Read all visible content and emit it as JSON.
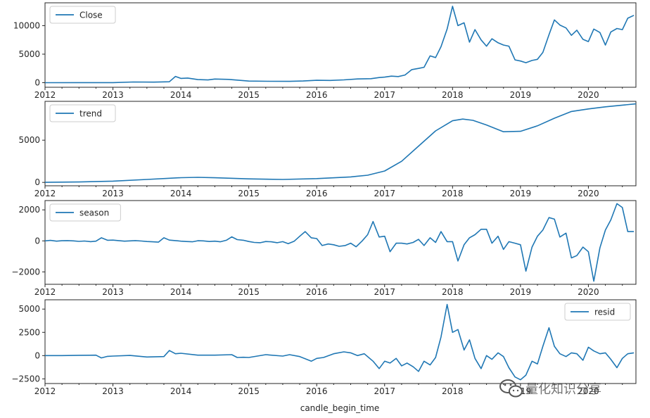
{
  "xlabel": "candle_begin_time",
  "watermark": {
    "text": "量化知识分享",
    "icon": "wechat-icon"
  },
  "line_color": "#1f77b4",
  "x_axis": {
    "range": [
      2012.0,
      2020.7
    ],
    "ticks": [
      2012,
      2013,
      2014,
      2015,
      2016,
      2017,
      2018,
      2019,
      2020
    ]
  },
  "chart_data": [
    {
      "type": "line",
      "legend": "Close",
      "legend_position": "upper left",
      "ylim": [
        -800,
        14000
      ],
      "yticks": [
        0,
        5000,
        10000
      ],
      "x": [
        2012.0,
        2012.5,
        2013.0,
        2013.3,
        2013.6,
        2013.83,
        2013.92,
        2014.0,
        2014.1,
        2014.25,
        2014.4,
        2014.5,
        2014.7,
        2015.0,
        2015.3,
        2015.6,
        2015.8,
        2016.0,
        2016.2,
        2016.4,
        2016.6,
        2016.8,
        2016.92,
        2017.0,
        2017.1,
        2017.2,
        2017.3,
        2017.4,
        2017.5,
        2017.58,
        2017.67,
        2017.75,
        2017.83,
        2017.92,
        2018.0,
        2018.08,
        2018.17,
        2018.25,
        2018.33,
        2018.42,
        2018.5,
        2018.58,
        2018.67,
        2018.75,
        2018.83,
        2018.92,
        2019.0,
        2019.08,
        2019.17,
        2019.25,
        2019.33,
        2019.42,
        2019.5,
        2019.58,
        2019.67,
        2019.75,
        2019.83,
        2019.92,
        2020.0,
        2020.08,
        2020.17,
        2020.25,
        2020.33,
        2020.42,
        2020.5,
        2020.58,
        2020.67
      ],
      "values": [
        5,
        10,
        20,
        120,
        100,
        160,
        1100,
        750,
        820,
        550,
        480,
        640,
        580,
        280,
        250,
        240,
        300,
        420,
        400,
        500,
        650,
        700,
        900,
        970,
        1150,
        1080,
        1350,
        2300,
        2500,
        2700,
        4700,
        4400,
        6300,
        9400,
        13400,
        10000,
        10500,
        7100,
        9300,
        7500,
        6400,
        7700,
        7000,
        6600,
        6400,
        4000,
        3800,
        3500,
        3900,
        4100,
        5300,
        8400,
        11000,
        10100,
        9600,
        8300,
        9200,
        7600,
        7200,
        9400,
        8800,
        6600,
        8900,
        9500,
        9300,
        11300,
        11800
      ]
    },
    {
      "type": "line",
      "legend": "trend",
      "legend_position": "upper left",
      "ylim": [
        -400,
        9600
      ],
      "yticks": [
        0,
        5000
      ],
      "x": [
        2012.0,
        2012.5,
        2013.0,
        2013.5,
        2014.0,
        2014.25,
        2014.5,
        2015.0,
        2015.5,
        2016.0,
        2016.5,
        2016.75,
        2017.0,
        2017.25,
        2017.5,
        2017.75,
        2018.0,
        2018.15,
        2018.3,
        2018.5,
        2018.75,
        2019.0,
        2019.25,
        2019.5,
        2019.75,
        2020.0,
        2020.25,
        2020.5,
        2020.7
      ],
      "values": [
        10,
        50,
        150,
        350,
        560,
        600,
        550,
        420,
        350,
        450,
        650,
        850,
        1350,
        2500,
        4300,
        6100,
        7300,
        7500,
        7350,
        6800,
        6000,
        6050,
        6700,
        7600,
        8400,
        8700,
        8950,
        9150,
        9300
      ]
    },
    {
      "type": "line",
      "legend": "season",
      "legend_position": "upper left",
      "ylim": [
        -2800,
        2600
      ],
      "yticks": [
        -2000,
        0,
        2000
      ],
      "x": [
        2012.0,
        2012.08,
        2012.17,
        2012.25,
        2012.33,
        2012.42,
        2012.5,
        2012.58,
        2012.67,
        2012.75,
        2012.83,
        2012.92,
        2013.0,
        2013.08,
        2013.17,
        2013.25,
        2013.33,
        2013.42,
        2013.5,
        2013.58,
        2013.67,
        2013.75,
        2013.83,
        2013.92,
        2014.0,
        2014.08,
        2014.17,
        2014.25,
        2014.33,
        2014.42,
        2014.5,
        2014.58,
        2014.67,
        2014.75,
        2014.83,
        2014.92,
        2015.0,
        2015.08,
        2015.17,
        2015.25,
        2015.33,
        2015.42,
        2015.5,
        2015.58,
        2015.67,
        2015.75,
        2015.83,
        2015.92,
        2016.0,
        2016.08,
        2016.17,
        2016.25,
        2016.33,
        2016.42,
        2016.5,
        2016.58,
        2016.67,
        2016.75,
        2016.83,
        2016.92,
        2017.0,
        2017.08,
        2017.17,
        2017.25,
        2017.33,
        2017.42,
        2017.5,
        2017.58,
        2017.67,
        2017.75,
        2017.83,
        2017.92,
        2018.0,
        2018.08,
        2018.17,
        2018.25,
        2018.33,
        2018.42,
        2018.5,
        2018.58,
        2018.67,
        2018.75,
        2018.83,
        2018.92,
        2019.0,
        2019.08,
        2019.17,
        2019.25,
        2019.33,
        2019.42,
        2019.5,
        2019.58,
        2019.67,
        2019.75,
        2019.83,
        2019.92,
        2020.0,
        2020.08,
        2020.17,
        2020.25,
        2020.33,
        2020.42,
        2020.5,
        2020.58,
        2020.67
      ],
      "values": [
        0,
        30,
        -20,
        10,
        20,
        0,
        -30,
        -10,
        -50,
        -20,
        200,
        40,
        50,
        20,
        -20,
        0,
        20,
        -10,
        -40,
        -60,
        -80,
        200,
        50,
        20,
        -20,
        -40,
        -60,
        10,
        0,
        -40,
        -20,
        -60,
        40,
        260,
        80,
        40,
        -40,
        -100,
        -120,
        -40,
        -60,
        -120,
        -50,
        -180,
        -20,
        300,
        600,
        200,
        150,
        -300,
        -200,
        -250,
        -350,
        -300,
        -150,
        -380,
        0,
        400,
        1250,
        250,
        300,
        -700,
        -150,
        -150,
        -200,
        -100,
        100,
        -300,
        200,
        -100,
        600,
        -50,
        -50,
        -1300,
        -250,
        200,
        400,
        750,
        750,
        -150,
        300,
        -550,
        -50,
        -150,
        -250,
        -1950,
        -400,
        300,
        700,
        1500,
        1400,
        250,
        500,
        -1100,
        -950,
        -400,
        -700,
        -2600,
        -450,
        700,
        1350,
        2400,
        2150,
        600,
        600
      ]
    },
    {
      "type": "line",
      "legend": "resid",
      "legend_position": "upper right",
      "ylim": [
        -3000,
        6000
      ],
      "yticks": [
        -2500,
        0,
        2500,
        5000
      ],
      "x": [
        2012.0,
        2012.25,
        2012.5,
        2012.75,
        2012.83,
        2012.92,
        2013.0,
        2013.25,
        2013.5,
        2013.75,
        2013.83,
        2013.92,
        2014.0,
        2014.25,
        2014.5,
        2014.75,
        2014.83,
        2014.92,
        2015.0,
        2015.25,
        2015.5,
        2015.6,
        2015.75,
        2015.92,
        2016.0,
        2016.1,
        2016.25,
        2016.4,
        2016.5,
        2016.6,
        2016.7,
        2016.83,
        2016.92,
        2017.0,
        2017.08,
        2017.17,
        2017.25,
        2017.33,
        2017.42,
        2017.5,
        2017.58,
        2017.67,
        2017.75,
        2017.83,
        2017.92,
        2018.0,
        2018.08,
        2018.17,
        2018.25,
        2018.33,
        2018.42,
        2018.5,
        2018.58,
        2018.67,
        2018.75,
        2018.83,
        2018.92,
        2019.0,
        2019.08,
        2019.17,
        2019.25,
        2019.33,
        2019.42,
        2019.5,
        2019.58,
        2019.67,
        2019.75,
        2019.83,
        2019.92,
        2020.0,
        2020.08,
        2020.17,
        2020.25,
        2020.33,
        2020.42,
        2020.5,
        2020.58,
        2020.67
      ],
      "values": [
        0,
        0,
        30,
        50,
        -250,
        -80,
        -50,
        20,
        -150,
        -100,
        550,
        200,
        250,
        50,
        50,
        100,
        -200,
        -180,
        -200,
        100,
        -50,
        100,
        -100,
        -600,
        -300,
        -200,
        200,
        400,
        300,
        0,
        200,
        -600,
        -1400,
        -600,
        -800,
        -300,
        -1100,
        -800,
        -1200,
        -1700,
        -600,
        -1000,
        -200,
        2000,
        5500,
        2500,
        2800,
        600,
        1700,
        -300,
        -1400,
        0,
        -400,
        300,
        -100,
        -1300,
        -2300,
        -2600,
        -2100,
        -600,
        -900,
        1000,
        3000,
        1000,
        200,
        -100,
        300,
        200,
        -500,
        900,
        500,
        200,
        300,
        -400,
        -1300,
        -300,
        200,
        300
      ]
    }
  ]
}
